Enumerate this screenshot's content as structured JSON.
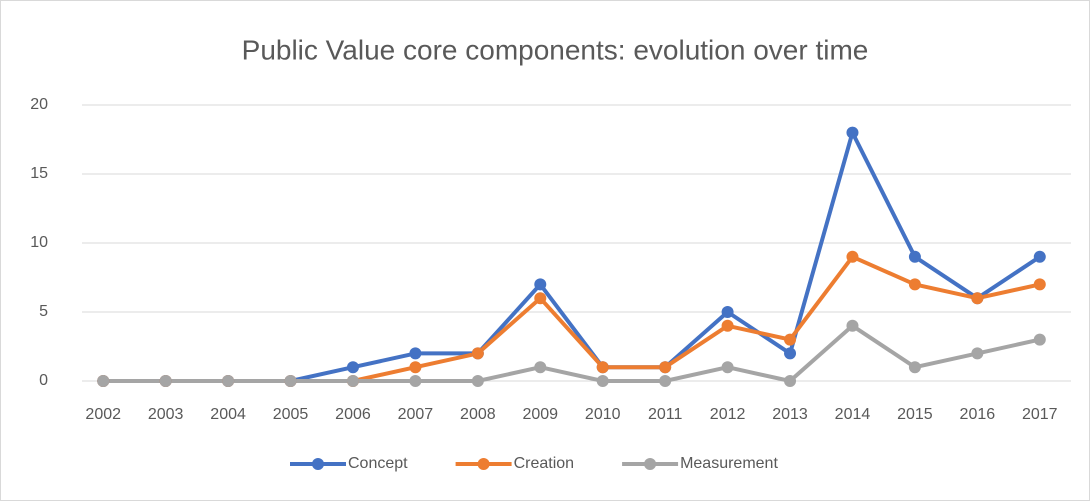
{
  "chart_data": {
    "type": "line",
    "title": "Public Value core components: evolution over time",
    "categories": [
      "2002",
      "2003",
      "2004",
      "2005",
      "2006",
      "2007",
      "2008",
      "2009",
      "2010",
      "2011",
      "2012",
      "2013",
      "2014",
      "2015",
      "2016",
      "2017"
    ],
    "series": [
      {
        "name": "Concept",
        "color": "#4472c4",
        "values": [
          0,
          0,
          0,
          0,
          1,
          2,
          2,
          7,
          1,
          1,
          5,
          2,
          18,
          9,
          6,
          9
        ]
      },
      {
        "name": "Creation",
        "color": "#ed7d31",
        "values": [
          0,
          0,
          0,
          0,
          0,
          1,
          2,
          6,
          1,
          1,
          4,
          3,
          9,
          7,
          6,
          7
        ]
      },
      {
        "name": "Measurement",
        "color": "#a5a5a5",
        "values": [
          0,
          0,
          0,
          0,
          0,
          0,
          0,
          1,
          0,
          0,
          1,
          0,
          4,
          1,
          2,
          3
        ]
      }
    ],
    "ylim": [
      0,
      20
    ],
    "yticks": [
      0,
      5,
      10,
      15,
      20
    ],
    "grid": true,
    "legend": "bottom"
  }
}
